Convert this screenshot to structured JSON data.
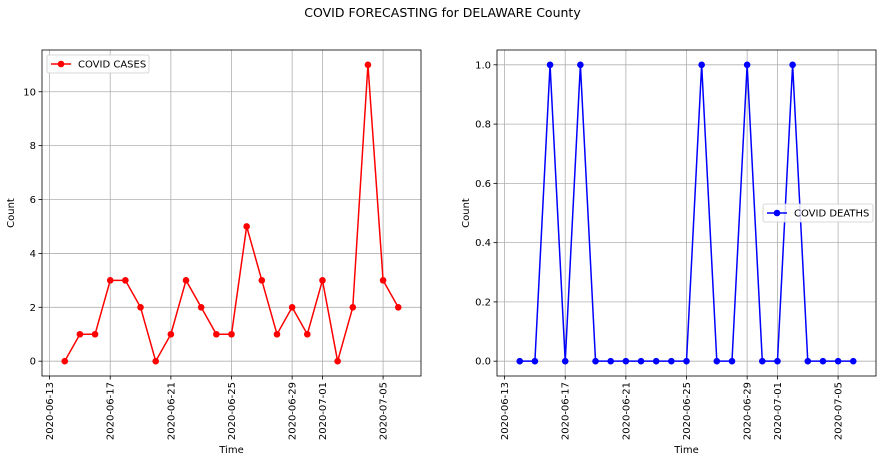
{
  "figure": {
    "title": "COVID FORECASTING for DELAWARE County"
  },
  "chart_data": [
    {
      "type": "line",
      "xlabel": "Time",
      "ylabel": "Count",
      "x_ticks": [
        "2020-06-13",
        "2020-06-17",
        "2020-06-21",
        "2020-06-25",
        "2020-06-29",
        "2020-07-01",
        "2020-07-05"
      ],
      "xlim": [
        "2020-06-12T12:00",
        "2020-07-07T12:00"
      ],
      "y_ticks": [
        0,
        2,
        4,
        6,
        8,
        10
      ],
      "ylim": [
        -0.55,
        11.55
      ],
      "grid": true,
      "legend_position": "top-left",
      "series": [
        {
          "name": "COVID CASES",
          "color": "#ff0000",
          "marker": "circle",
          "x": [
            "2020-06-14",
            "2020-06-15",
            "2020-06-16",
            "2020-06-17",
            "2020-06-18",
            "2020-06-19",
            "2020-06-20",
            "2020-06-21",
            "2020-06-22",
            "2020-06-23",
            "2020-06-24",
            "2020-06-25",
            "2020-06-26",
            "2020-06-27",
            "2020-06-28",
            "2020-06-29",
            "2020-06-30",
            "2020-07-01",
            "2020-07-02",
            "2020-07-03",
            "2020-07-04",
            "2020-07-05",
            "2020-07-06"
          ],
          "values": [
            0,
            1,
            1,
            3,
            3,
            2,
            0,
            1,
            3,
            2,
            1,
            1,
            5,
            3,
            1,
            2,
            1,
            3,
            0,
            2,
            11,
            3,
            2
          ]
        }
      ]
    },
    {
      "type": "line",
      "xlabel": "Time",
      "ylabel": "Count",
      "x_ticks": [
        "2020-06-13",
        "2020-06-17",
        "2020-06-21",
        "2020-06-25",
        "2020-06-29",
        "2020-07-01",
        "2020-07-05"
      ],
      "xlim": [
        "2020-06-12T12:00",
        "2020-07-07T12:00"
      ],
      "y_ticks": [
        0.0,
        0.2,
        0.4,
        0.6,
        0.8,
        1.0
      ],
      "ylim": [
        -0.05,
        1.05
      ],
      "grid": true,
      "legend_position": "center-right",
      "series": [
        {
          "name": "COVID DEATHS",
          "color": "#0000ff",
          "marker": "circle",
          "x": [
            "2020-06-14",
            "2020-06-15",
            "2020-06-16",
            "2020-06-17",
            "2020-06-18",
            "2020-06-19",
            "2020-06-20",
            "2020-06-21",
            "2020-06-22",
            "2020-06-23",
            "2020-06-24",
            "2020-06-25",
            "2020-06-26",
            "2020-06-27",
            "2020-06-28",
            "2020-06-29",
            "2020-06-30",
            "2020-07-01",
            "2020-07-02",
            "2020-07-03",
            "2020-07-04",
            "2020-07-05",
            "2020-07-06"
          ],
          "values": [
            0,
            0,
            1,
            0,
            1,
            0,
            0,
            0,
            0,
            0,
            0,
            0,
            1,
            0,
            0,
            1,
            0,
            0,
            1,
            0,
            0,
            0,
            0
          ]
        }
      ]
    }
  ]
}
